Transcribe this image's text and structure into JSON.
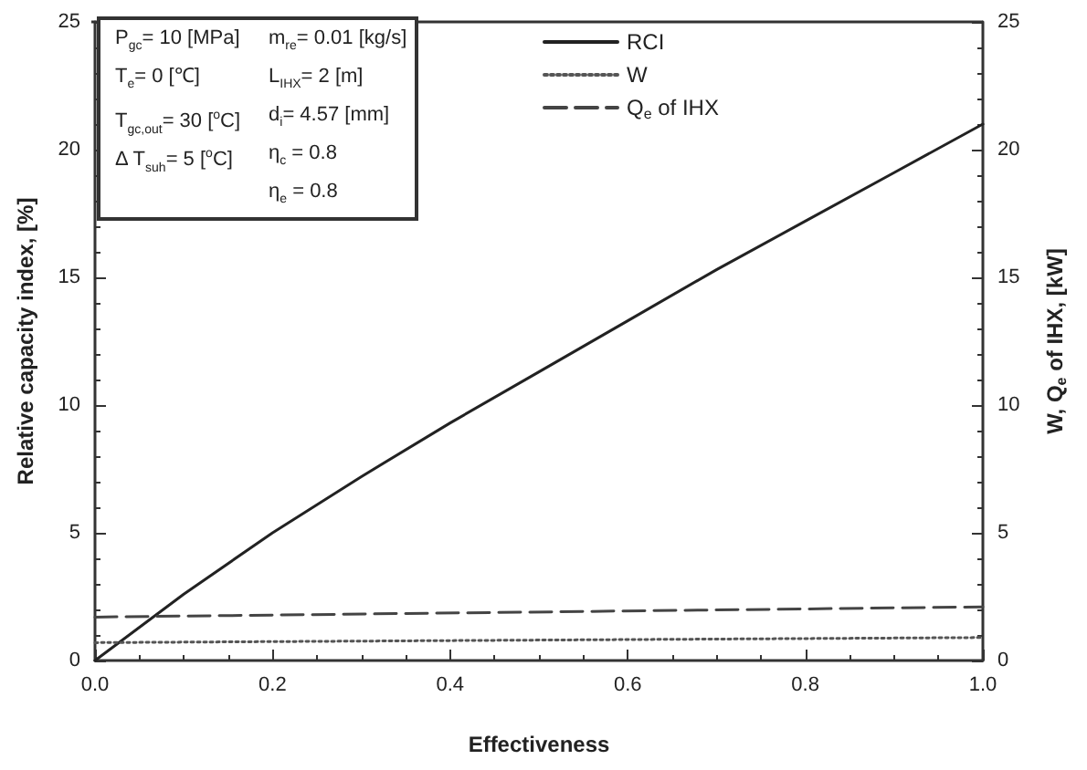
{
  "chart_data": {
    "type": "line",
    "xlabel": "Effectiveness",
    "ylabel": "Relative capacity index, [%]",
    "y2label": "W, Q$_{e}$ of IHX, [kW]",
    "xlim": [
      0,
      1
    ],
    "xticks": [
      {
        "value": 0,
        "label": "0.0"
      },
      0.2,
      0.4,
      0.6,
      0.8,
      {
        "value": 1,
        "label": "1.0"
      }
    ],
    "ylim": [
      0,
      25
    ],
    "yticks": [
      0,
      5,
      10,
      15,
      20,
      25
    ],
    "y2lim": [
      0,
      25
    ],
    "y2ticks": [
      0,
      5,
      10,
      15,
      20,
      25
    ],
    "series": [
      {
        "name": "RCI",
        "color": "#222222",
        "line_style": "solid",
        "x": [
          0,
          0.1,
          0.2,
          0.3,
          0.4,
          0.5,
          0.6,
          0.7,
          0.8,
          0.9,
          1.0
        ],
        "values": [
          0,
          2.6,
          5.0,
          7.2,
          9.3,
          11.3,
          13.3,
          15.3,
          17.2,
          19.1,
          21.0
        ]
      },
      {
        "name": "W",
        "color": "#555555",
        "line_style": "dotted",
        "x": [
          0,
          1
        ],
        "values": [
          0.7,
          0.9
        ]
      },
      {
        "name": "Q$_{e}$ of IHX",
        "color": "#444444",
        "line_style": "dashed",
        "x": [
          0,
          1
        ],
        "values": [
          1.7,
          2.1
        ]
      }
    ],
    "annotations": [
      "P$_{gc}$= 10 [MPa]",
      "T$_{e}$= 0 [℃]",
      "T$_{gc,out}$= 30 [$^{o}$C]",
      "Δ T$_{suh}$= 5 [$^{o}$C]",
      "m$_{re}$= 0.01 [kg/s]",
      "L$_{IHX}$= 2 [m]",
      "d$_{i}$= 4.57 [mm]",
      "η$_{c}$ = 0.8",
      "η$_{e}$ = 0.8"
    ],
    "marker": "none",
    "grid": false,
    "legend": "top right"
  }
}
